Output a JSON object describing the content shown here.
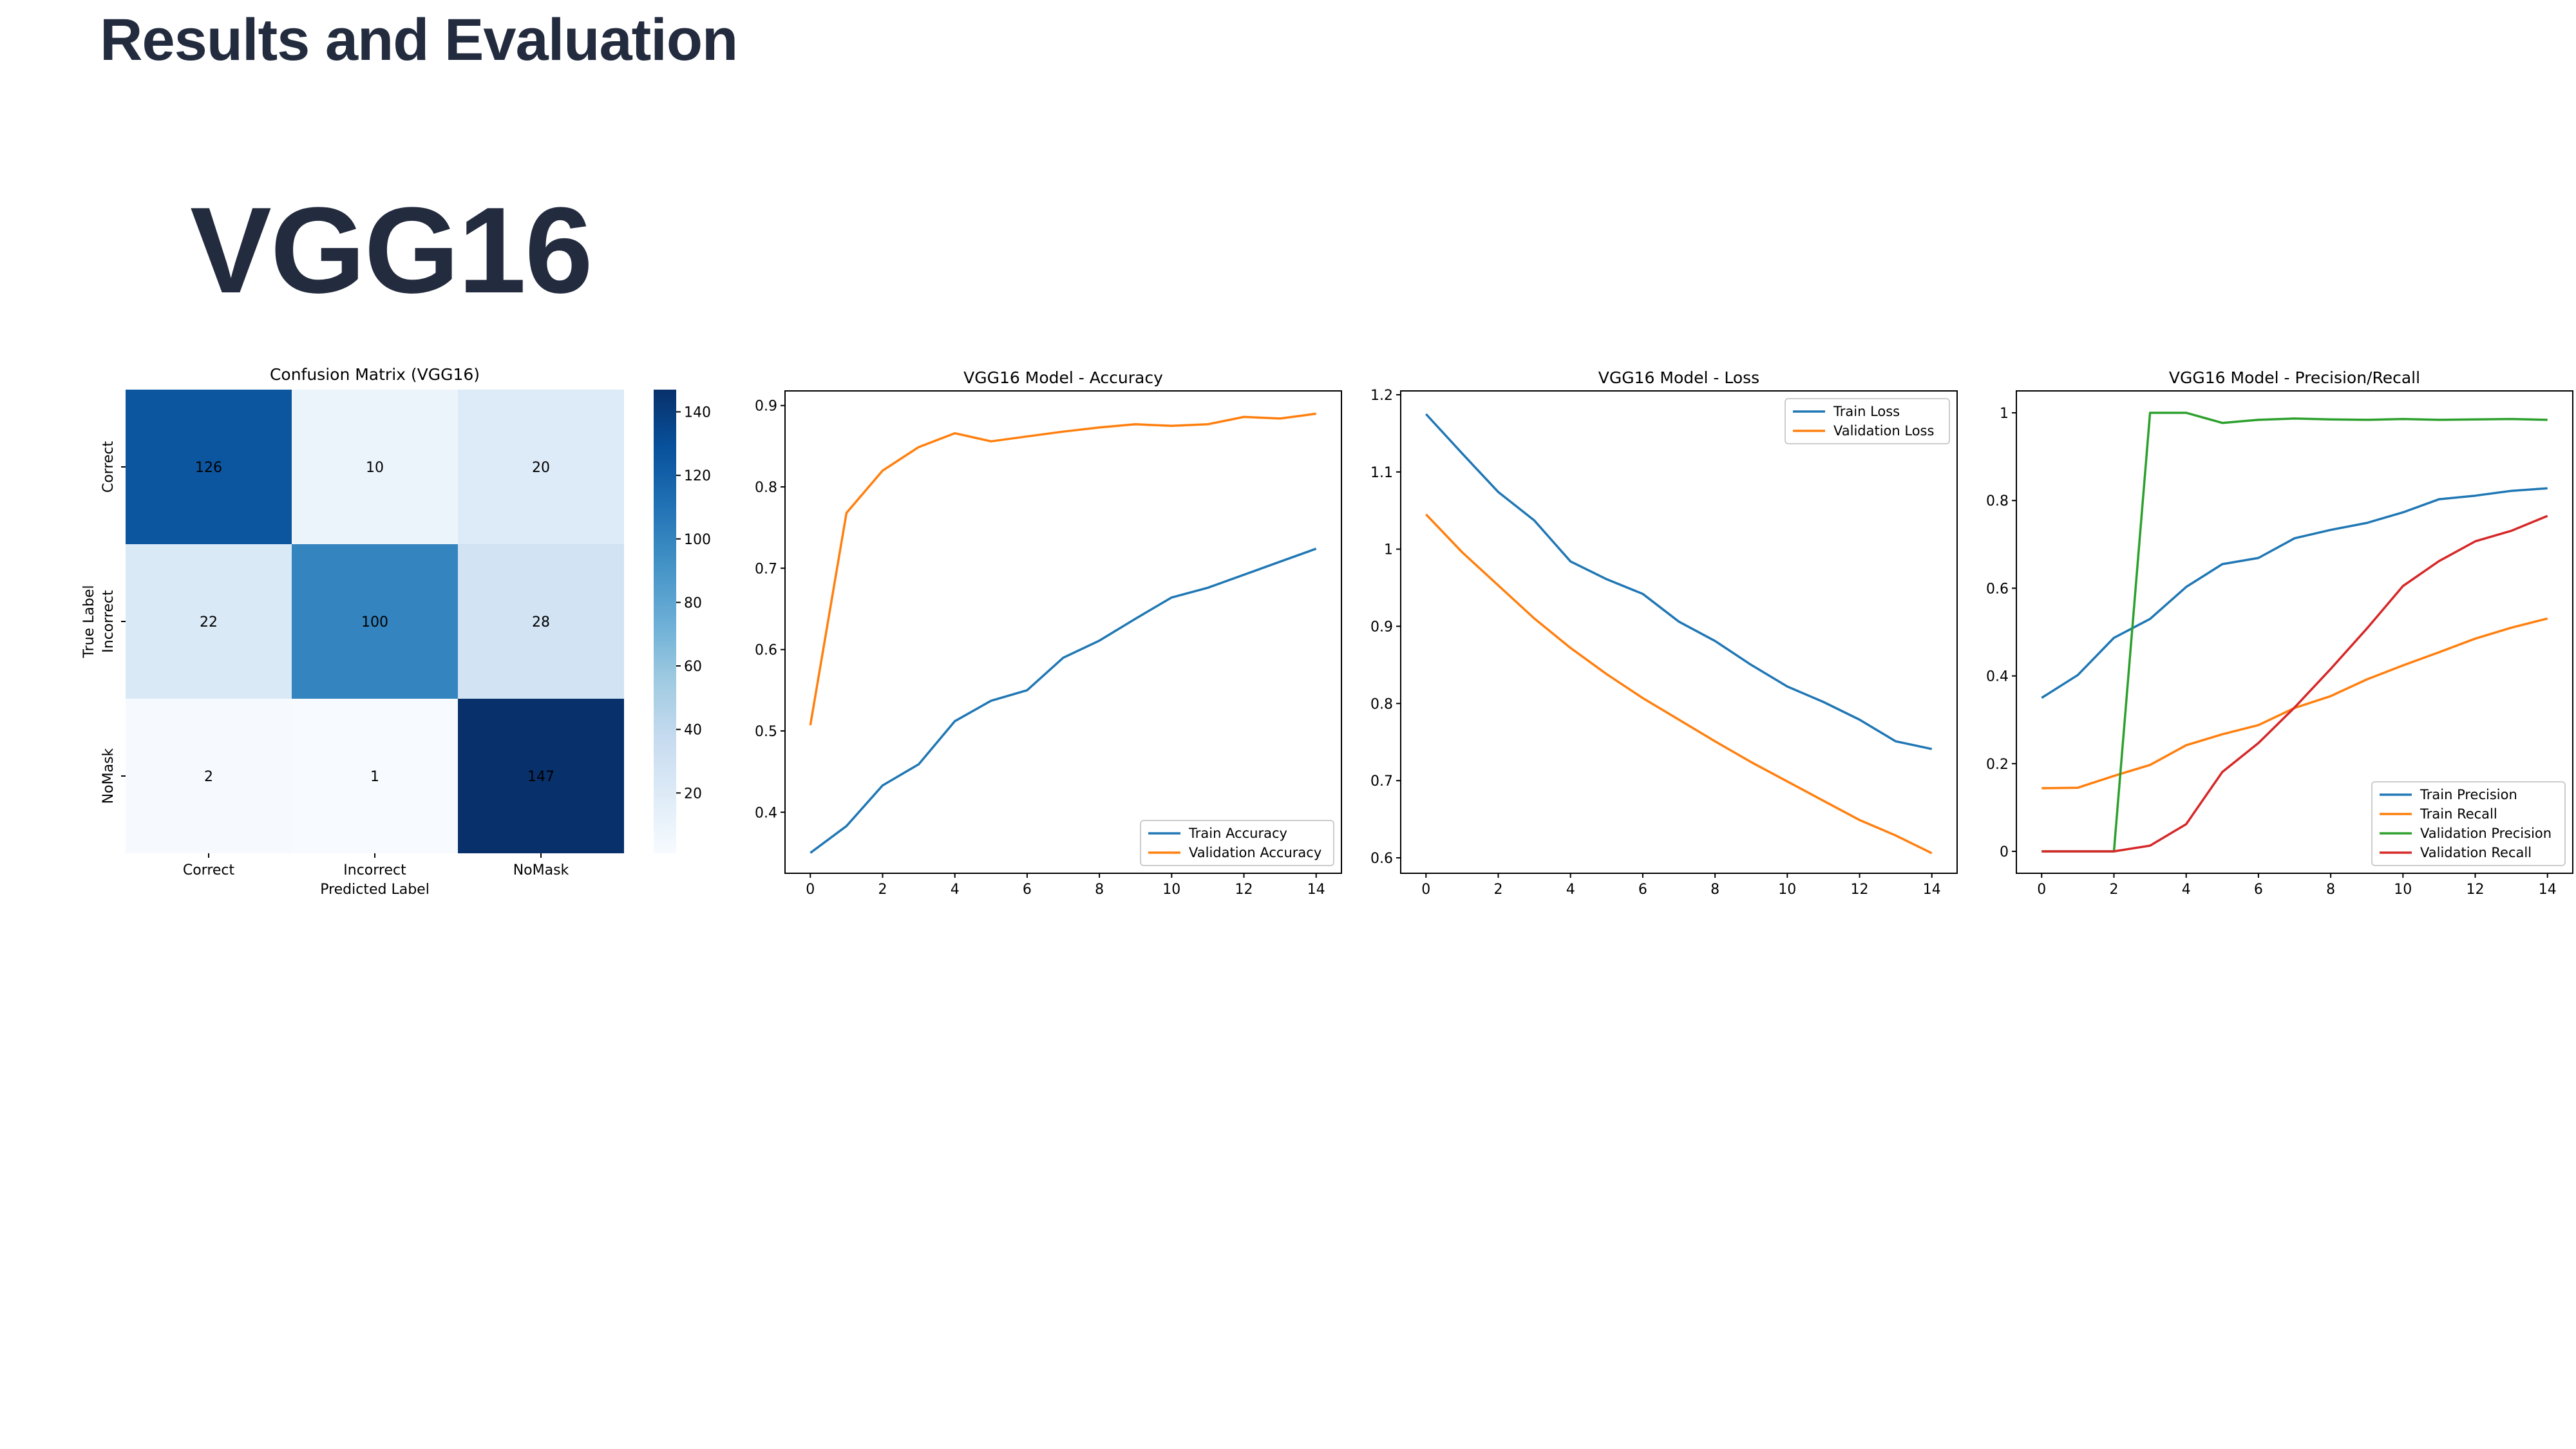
{
  "slide": {
    "title": "Results and Evaluation",
    "model_name": "VGG16"
  },
  "chart_data": [
    {
      "type": "heatmap",
      "title": "Confusion Matrix (VGG16)",
      "xlabel": "Predicted Label",
      "ylabel": "True Label",
      "categories": [
        "Correct",
        "Incorrect",
        "NoMask"
      ],
      "matrix": [
        [
          126,
          10,
          20
        ],
        [
          22,
          100,
          28
        ],
        [
          2,
          1,
          147
        ]
      ],
      "colorbar": {
        "ticks": [
          20,
          40,
          60,
          80,
          100,
          120,
          140
        ],
        "range": [
          1,
          147
        ],
        "colormap": "Blues"
      }
    },
    {
      "type": "line",
      "title": "VGG16 Model - Accuracy",
      "x": [
        0,
        1,
        2,
        3,
        4,
        5,
        6,
        7,
        8,
        9,
        10,
        11,
        12,
        13,
        14
      ],
      "xticks": [
        0,
        2,
        4,
        6,
        8,
        10,
        12,
        14
      ],
      "yticks": [
        0.4,
        0.5,
        0.6,
        0.7,
        0.8,
        0.9
      ],
      "xlim": [
        -0.7,
        14.7
      ],
      "ylim": [
        0.325,
        0.918
      ],
      "legend": "lower-right",
      "series": [
        {
          "name": "Train Accuracy",
          "color": "#1f77b4",
          "values": [
            0.35,
            0.383,
            0.433,
            0.459,
            0.512,
            0.537,
            0.55,
            0.59,
            0.611,
            0.638,
            0.664,
            0.676,
            0.692,
            0.708,
            0.724
          ]
        },
        {
          "name": "Validation Accuracy",
          "color": "#ff7f0e",
          "values": [
            0.507,
            0.768,
            0.82,
            0.849,
            0.866,
            0.856,
            0.862,
            0.868,
            0.873,
            0.877,
            0.875,
            0.877,
            0.886,
            0.884,
            0.89
          ]
        }
      ]
    },
    {
      "type": "line",
      "title": "VGG16 Model - Loss",
      "x": [
        0,
        1,
        2,
        3,
        4,
        5,
        6,
        7,
        8,
        9,
        10,
        11,
        12,
        13,
        14
      ],
      "xticks": [
        0,
        2,
        4,
        6,
        8,
        10,
        12,
        14
      ],
      "yticks": [
        0.6,
        0.7,
        0.8,
        0.9,
        1.0,
        1.1,
        1.2
      ],
      "xlim": [
        -0.7,
        14.7
      ],
      "ylim": [
        0.58,
        1.205
      ],
      "legend": "top-right",
      "series": [
        {
          "name": "Train Loss",
          "color": "#1f77b4",
          "values": [
            1.175,
            1.124,
            1.074,
            1.037,
            0.984,
            0.961,
            0.942,
            0.906,
            0.881,
            0.85,
            0.822,
            0.802,
            0.779,
            0.751,
            0.741
          ]
        },
        {
          "name": "Validation Loss",
          "color": "#ff7f0e",
          "values": [
            1.045,
            0.996,
            0.953,
            0.91,
            0.872,
            0.838,
            0.807,
            0.779,
            0.751,
            0.724,
            0.699,
            0.674,
            0.649,
            0.629,
            0.606
          ]
        }
      ]
    },
    {
      "type": "line",
      "title": "VGG16 Model - Precision/Recall",
      "x": [
        0,
        1,
        2,
        3,
        4,
        5,
        6,
        7,
        8,
        9,
        10,
        11,
        12,
        13,
        14
      ],
      "xticks": [
        0,
        2,
        4,
        6,
        8,
        10,
        12,
        14
      ],
      "yticks": [
        0.0,
        0.2,
        0.4,
        0.6,
        0.8,
        1.0
      ],
      "xlim": [
        -0.7,
        14.7
      ],
      "ylim": [
        -0.05,
        1.05
      ],
      "legend": "lower-right",
      "series": [
        {
          "name": "Train Precision",
          "color": "#1f77b4",
          "values": [
            0.35,
            0.402,
            0.487,
            0.53,
            0.603,
            0.655,
            0.669,
            0.714,
            0.733,
            0.749,
            0.773,
            0.803,
            0.811,
            0.822,
            0.828
          ]
        },
        {
          "name": "Train Recall",
          "color": "#ff7f0e",
          "values": [
            0.144,
            0.145,
            0.172,
            0.197,
            0.242,
            0.267,
            0.288,
            0.327,
            0.354,
            0.392,
            0.424,
            0.454,
            0.485,
            0.51,
            0.531
          ]
        },
        {
          "name": "Validation Precision",
          "color": "#2ca02c",
          "values": [
            0,
            0,
            0,
            1.0,
            1.0,
            0.977,
            0.984,
            0.987,
            0.985,
            0.984,
            0.986,
            0.984,
            0.985,
            0.986,
            0.984
          ]
        },
        {
          "name": "Validation Recall",
          "color": "#d62728",
          "values": [
            0,
            0,
            0,
            0.013,
            0.062,
            0.181,
            0.247,
            0.328,
            0.416,
            0.508,
            0.605,
            0.662,
            0.707,
            0.731,
            0.765
          ]
        }
      ]
    }
  ]
}
